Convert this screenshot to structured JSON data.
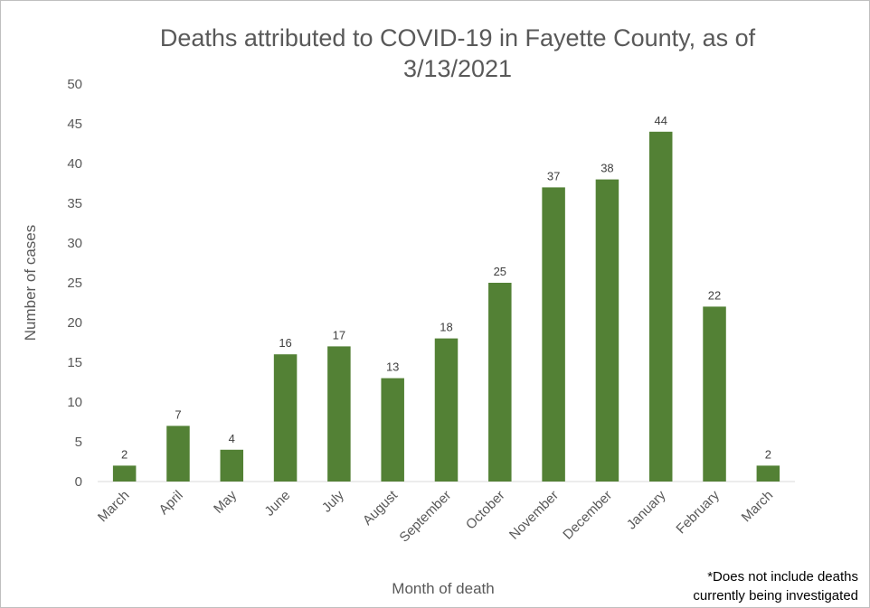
{
  "chart_data": {
    "type": "bar",
    "title": "Deaths attributed to COVID-19 in Fayette County, as of 3/13/2021",
    "xlabel": "Month of death",
    "ylabel": "Number of cases",
    "categories": [
      "March",
      "April",
      "May",
      "June",
      "July",
      "August",
      "September",
      "October",
      "November",
      "December",
      "January",
      "February",
      "March"
    ],
    "values": [
      2,
      7,
      4,
      16,
      17,
      13,
      18,
      25,
      37,
      38,
      44,
      22,
      2
    ],
    "ylim": [
      0,
      50
    ],
    "yticks": [
      0,
      5,
      10,
      15,
      20,
      25,
      30,
      35,
      40,
      45,
      50
    ],
    "grid": false,
    "data_labels": true,
    "bar_color": "#538135",
    "legend": "none"
  },
  "footnote": {
    "line1": "*Does not include deaths",
    "line2": "currently being investigated"
  }
}
